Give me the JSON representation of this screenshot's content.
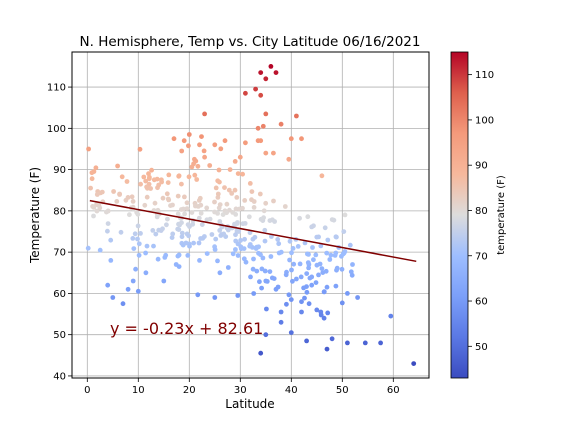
{
  "chart_data": {
    "type": "scatter",
    "title": "N. Hemisphere, Temp vs. City Latitude  06/16/2021",
    "xlabel": "Latitude",
    "ylabel": "Temperature (F)",
    "xlim": [
      -3,
      67
    ],
    "ylim": [
      39.5,
      118.5
    ],
    "xticks": [
      0,
      10,
      20,
      30,
      40,
      50,
      60
    ],
    "yticks": [
      40,
      50,
      60,
      70,
      80,
      90,
      100,
      110
    ],
    "grid": true,
    "colorbar": {
      "label": "temperature (F)",
      "range": [
        43,
        115
      ],
      "ticks": [
        50,
        60,
        70,
        80,
        90,
        100,
        110
      ],
      "colormap": "coolwarm"
    },
    "regression": {
      "slope": -0.23,
      "intercept": 82.61,
      "x_range": [
        0.5,
        64.5
      ],
      "color": "#800000",
      "equation": "y = -0.23x + 82.61"
    },
    "highlighted_points": [
      [
        36,
        115
      ],
      [
        34,
        113.5
      ],
      [
        37,
        113.5
      ],
      [
        35,
        112
      ],
      [
        33,
        109.5
      ],
      [
        31,
        108.5
      ],
      [
        34,
        108
      ],
      [
        23,
        103.5
      ],
      [
        35,
        103.5
      ],
      [
        41,
        103
      ],
      [
        38,
        101
      ],
      [
        34.5,
        100.5
      ],
      [
        33.5,
        100
      ],
      [
        20,
        98.5
      ],
      [
        17,
        97.5
      ],
      [
        19,
        97
      ],
      [
        40,
        97.5
      ],
      [
        42,
        97.5
      ],
      [
        27,
        97
      ],
      [
        33.5,
        97
      ],
      [
        34,
        97
      ],
      [
        22,
        96
      ],
      [
        31,
        96.5
      ],
      [
        25,
        96
      ],
      [
        18.5,
        94.5
      ],
      [
        35,
        94
      ],
      [
        36.5,
        94
      ],
      [
        23,
        93
      ],
      [
        30,
        93
      ],
      [
        39.5,
        92.5
      ],
      [
        21,
        92.5
      ],
      [
        29,
        92
      ],
      [
        24,
        91
      ],
      [
        28,
        90
      ],
      [
        18,
        88.5
      ],
      [
        12,
        89
      ],
      [
        46,
        88.5
      ],
      [
        48,
        49
      ],
      [
        51,
        48
      ],
      [
        54.5,
        48
      ],
      [
        57.5,
        48
      ],
      [
        43,
        48.5
      ],
      [
        47,
        46.5
      ],
      [
        34,
        45.5
      ],
      [
        64,
        43
      ],
      [
        40,
        50.5
      ],
      [
        35,
        50
      ],
      [
        38,
        53
      ],
      [
        59.5,
        54.5
      ],
      [
        42,
        55.5
      ],
      [
        38,
        55.5
      ],
      [
        45,
        56
      ],
      [
        43.5,
        57.5
      ],
      [
        40,
        58.5
      ],
      [
        42,
        58
      ],
      [
        53,
        59
      ],
      [
        51,
        60
      ],
      [
        47,
        61.5
      ],
      [
        44,
        62
      ],
      [
        25,
        59
      ],
      [
        29.5,
        59.5
      ],
      [
        5,
        59
      ],
      [
        7,
        57.5
      ],
      [
        8,
        61
      ],
      [
        9,
        63
      ],
      [
        10,
        60.5
      ],
      [
        4,
        62
      ],
      [
        11.5,
        65
      ],
      [
        15,
        63
      ],
      [
        18,
        66.5
      ],
      [
        22,
        68
      ],
      [
        26,
        65
      ],
      [
        32,
        64
      ],
      [
        35,
        63
      ],
      [
        37,
        61
      ],
      [
        39,
        64.5
      ],
      [
        41,
        63.5
      ],
      [
        44,
        64
      ],
      [
        46,
        66
      ],
      [
        52,
        67
      ]
    ],
    "cloud": {
      "count": 360,
      "x_range": [
        0,
        52
      ],
      "residual_sd": 6.5
    }
  }
}
